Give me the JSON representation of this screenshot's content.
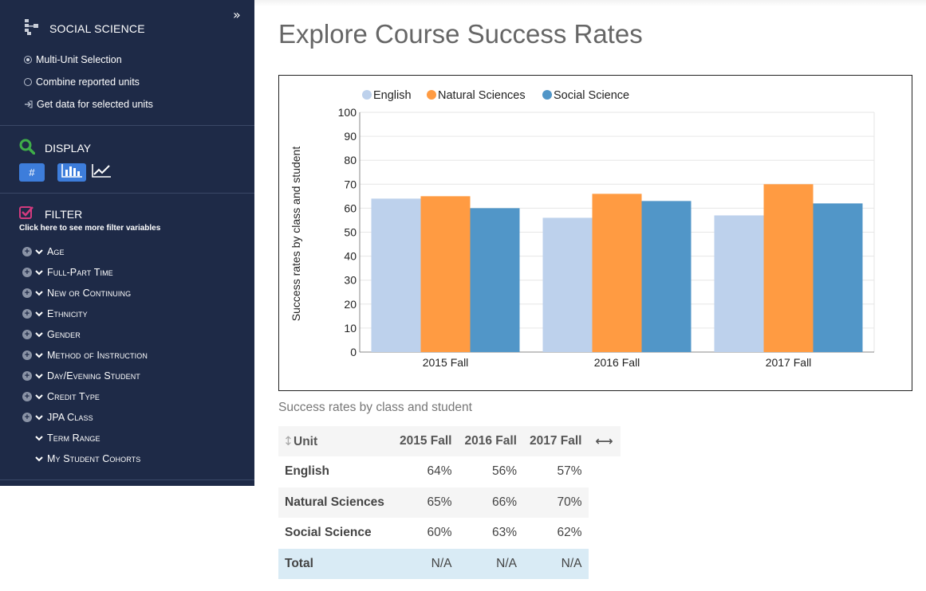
{
  "sidebar": {
    "unit_title": "SOCIAL SCIENCE",
    "options": [
      {
        "label": "Multi-Unit Selection",
        "selected": true
      },
      {
        "label": "Combine reported units",
        "selected": false
      },
      {
        "label": "Get data for selected units"
      }
    ],
    "display_label": "DISPLAY",
    "display_buttons": {
      "hash": "#"
    },
    "filter_label": "FILTER",
    "filter_hint": "Click here to see more filter variables",
    "filters": [
      "Age",
      "Full-Part Time",
      "New or Continuing",
      "Ethnicity",
      "Gender",
      "Method of Instruction",
      "Day/Evening Student",
      "Credit Type",
      "JPA Class",
      "Term Range",
      "My Student Cohorts"
    ]
  },
  "main": {
    "title": "Explore Course Success Rates",
    "caption": "Success rates by class and student"
  },
  "chart_data": {
    "type": "bar",
    "categories": [
      "2015 Fall",
      "2016 Fall",
      "2017 Fall"
    ],
    "series": [
      {
        "name": "English",
        "color": "#bdd1ec",
        "values": [
          64,
          56,
          57
        ]
      },
      {
        "name": "Natural Sciences",
        "color": "#ff9b42",
        "values": [
          65,
          66,
          70
        ]
      },
      {
        "name": "Social Science",
        "color": "#5196c8",
        "values": [
          60,
          63,
          62
        ]
      }
    ],
    "ylabel": "Success rates by class and student",
    "ylim": [
      0,
      100
    ],
    "yticks": [
      0,
      10,
      20,
      30,
      40,
      50,
      60,
      70,
      80,
      90,
      100
    ],
    "legend": "top-left",
    "grid": true
  },
  "table": {
    "headers": [
      "Unit",
      "2015 Fall",
      "2016 Fall",
      "2017 Fall"
    ],
    "rows": [
      {
        "name": "English",
        "values": [
          "64%",
          "56%",
          "57%"
        ]
      },
      {
        "name": "Natural Sciences",
        "values": [
          "65%",
          "66%",
          "70%"
        ]
      },
      {
        "name": "Social Science",
        "values": [
          "60%",
          "63%",
          "62%"
        ]
      },
      {
        "name": "Total",
        "values": [
          "N/A",
          "N/A",
          "N/A"
        ]
      }
    ]
  }
}
